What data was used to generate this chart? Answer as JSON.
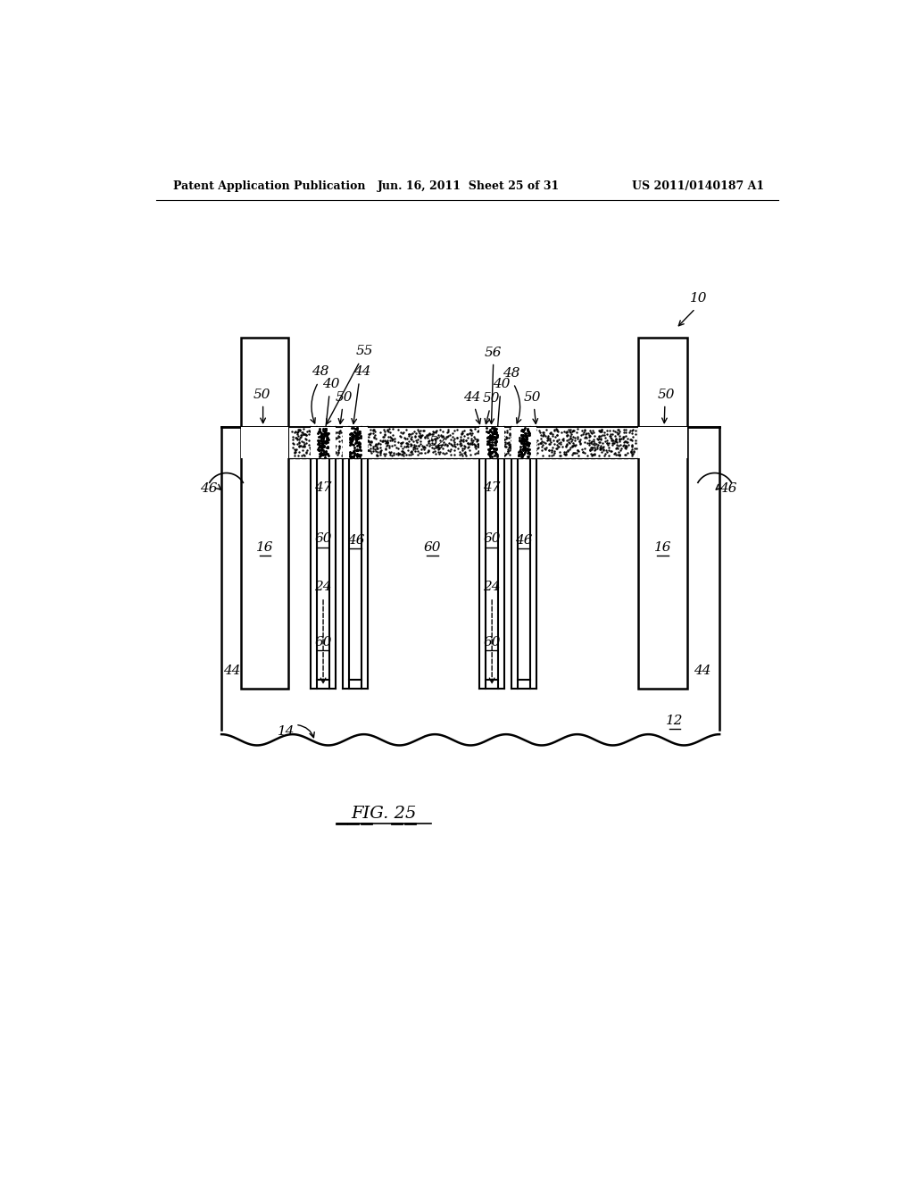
{
  "bg_color": "#ffffff",
  "title_left": "Patent Application Publication",
  "title_mid": "Jun. 16, 2011  Sheet 25 of 31",
  "title_right": "US 2011/0140187 A1",
  "fig_label": "FIG. 25"
}
